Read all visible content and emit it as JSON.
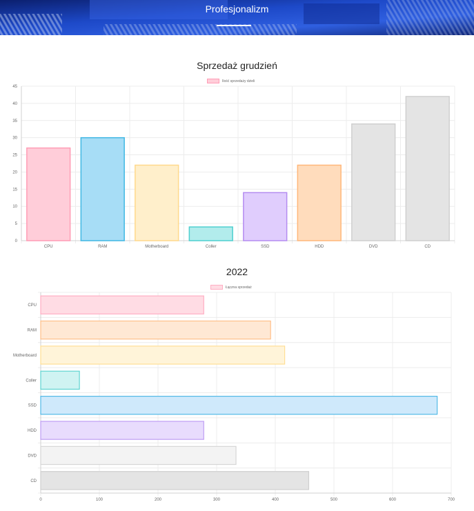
{
  "header": {
    "title": "Profesjonalizm",
    "accent": "#1a3fb0"
  },
  "chart_data": [
    {
      "type": "bar",
      "title": "Sprzedaż grudzień",
      "categories": [
        "CPU",
        "RAM",
        "Motherboard",
        "Coller",
        "SSD",
        "HDD",
        "DVD",
        "CD"
      ],
      "series": [
        {
          "name": "Ilość sprzedaży dzieli",
          "values": [
            27,
            30,
            22,
            4,
            14,
            22,
            34,
            42
          ]
        }
      ],
      "ylim": [
        0,
        45
      ],
      "yticks": [
        0,
        5,
        10,
        15,
        20,
        25,
        30,
        35,
        40,
        45
      ],
      "legend": "top-center",
      "grid": true,
      "colors": {
        "fill": [
          "#ffcdd9",
          "#a7ddf6",
          "#ffefcb",
          "#b2ecec",
          "#e0cdfd",
          "#ffdcbc",
          "#e4e4e4",
          "#e4e4e4"
        ],
        "stroke": [
          "#ff9cb5",
          "#3fb7e3",
          "#ffd98c",
          "#4dcfcf",
          "#b48cf0",
          "#ffb77a",
          "#cfcfcf",
          "#cfcfcf"
        ]
      }
    },
    {
      "type": "bar",
      "orientation": "horizontal",
      "title": "2022",
      "categories": [
        "CPU",
        "RAM",
        "Motherboard",
        "Coller",
        "SSD",
        "HDD",
        "DVD",
        "CD"
      ],
      "series": [
        {
          "name": "Łączna sprzedaż",
          "values": [
            278,
            392,
            416,
            66,
            676,
            278,
            333,
            457
          ]
        }
      ],
      "xlim": [
        0,
        700
      ],
      "xticks": [
        0,
        100,
        200,
        300,
        400,
        500,
        600,
        700
      ],
      "legend": "top-center",
      "grid": true,
      "colors": {
        "fill": [
          "#ffdce4",
          "#ffe8d4",
          "#fff4d9",
          "#cff3f2",
          "#cfe9fb",
          "#e8dcfd",
          "#f3f3f3",
          "#e4e4e4"
        ],
        "stroke": [
          "#ffaec3",
          "#ffc08a",
          "#ffdf95",
          "#5fd4d1",
          "#52b9e6",
          "#bf9ef3",
          "#d6d6d6",
          "#cfcfcf"
        ]
      }
    }
  ]
}
